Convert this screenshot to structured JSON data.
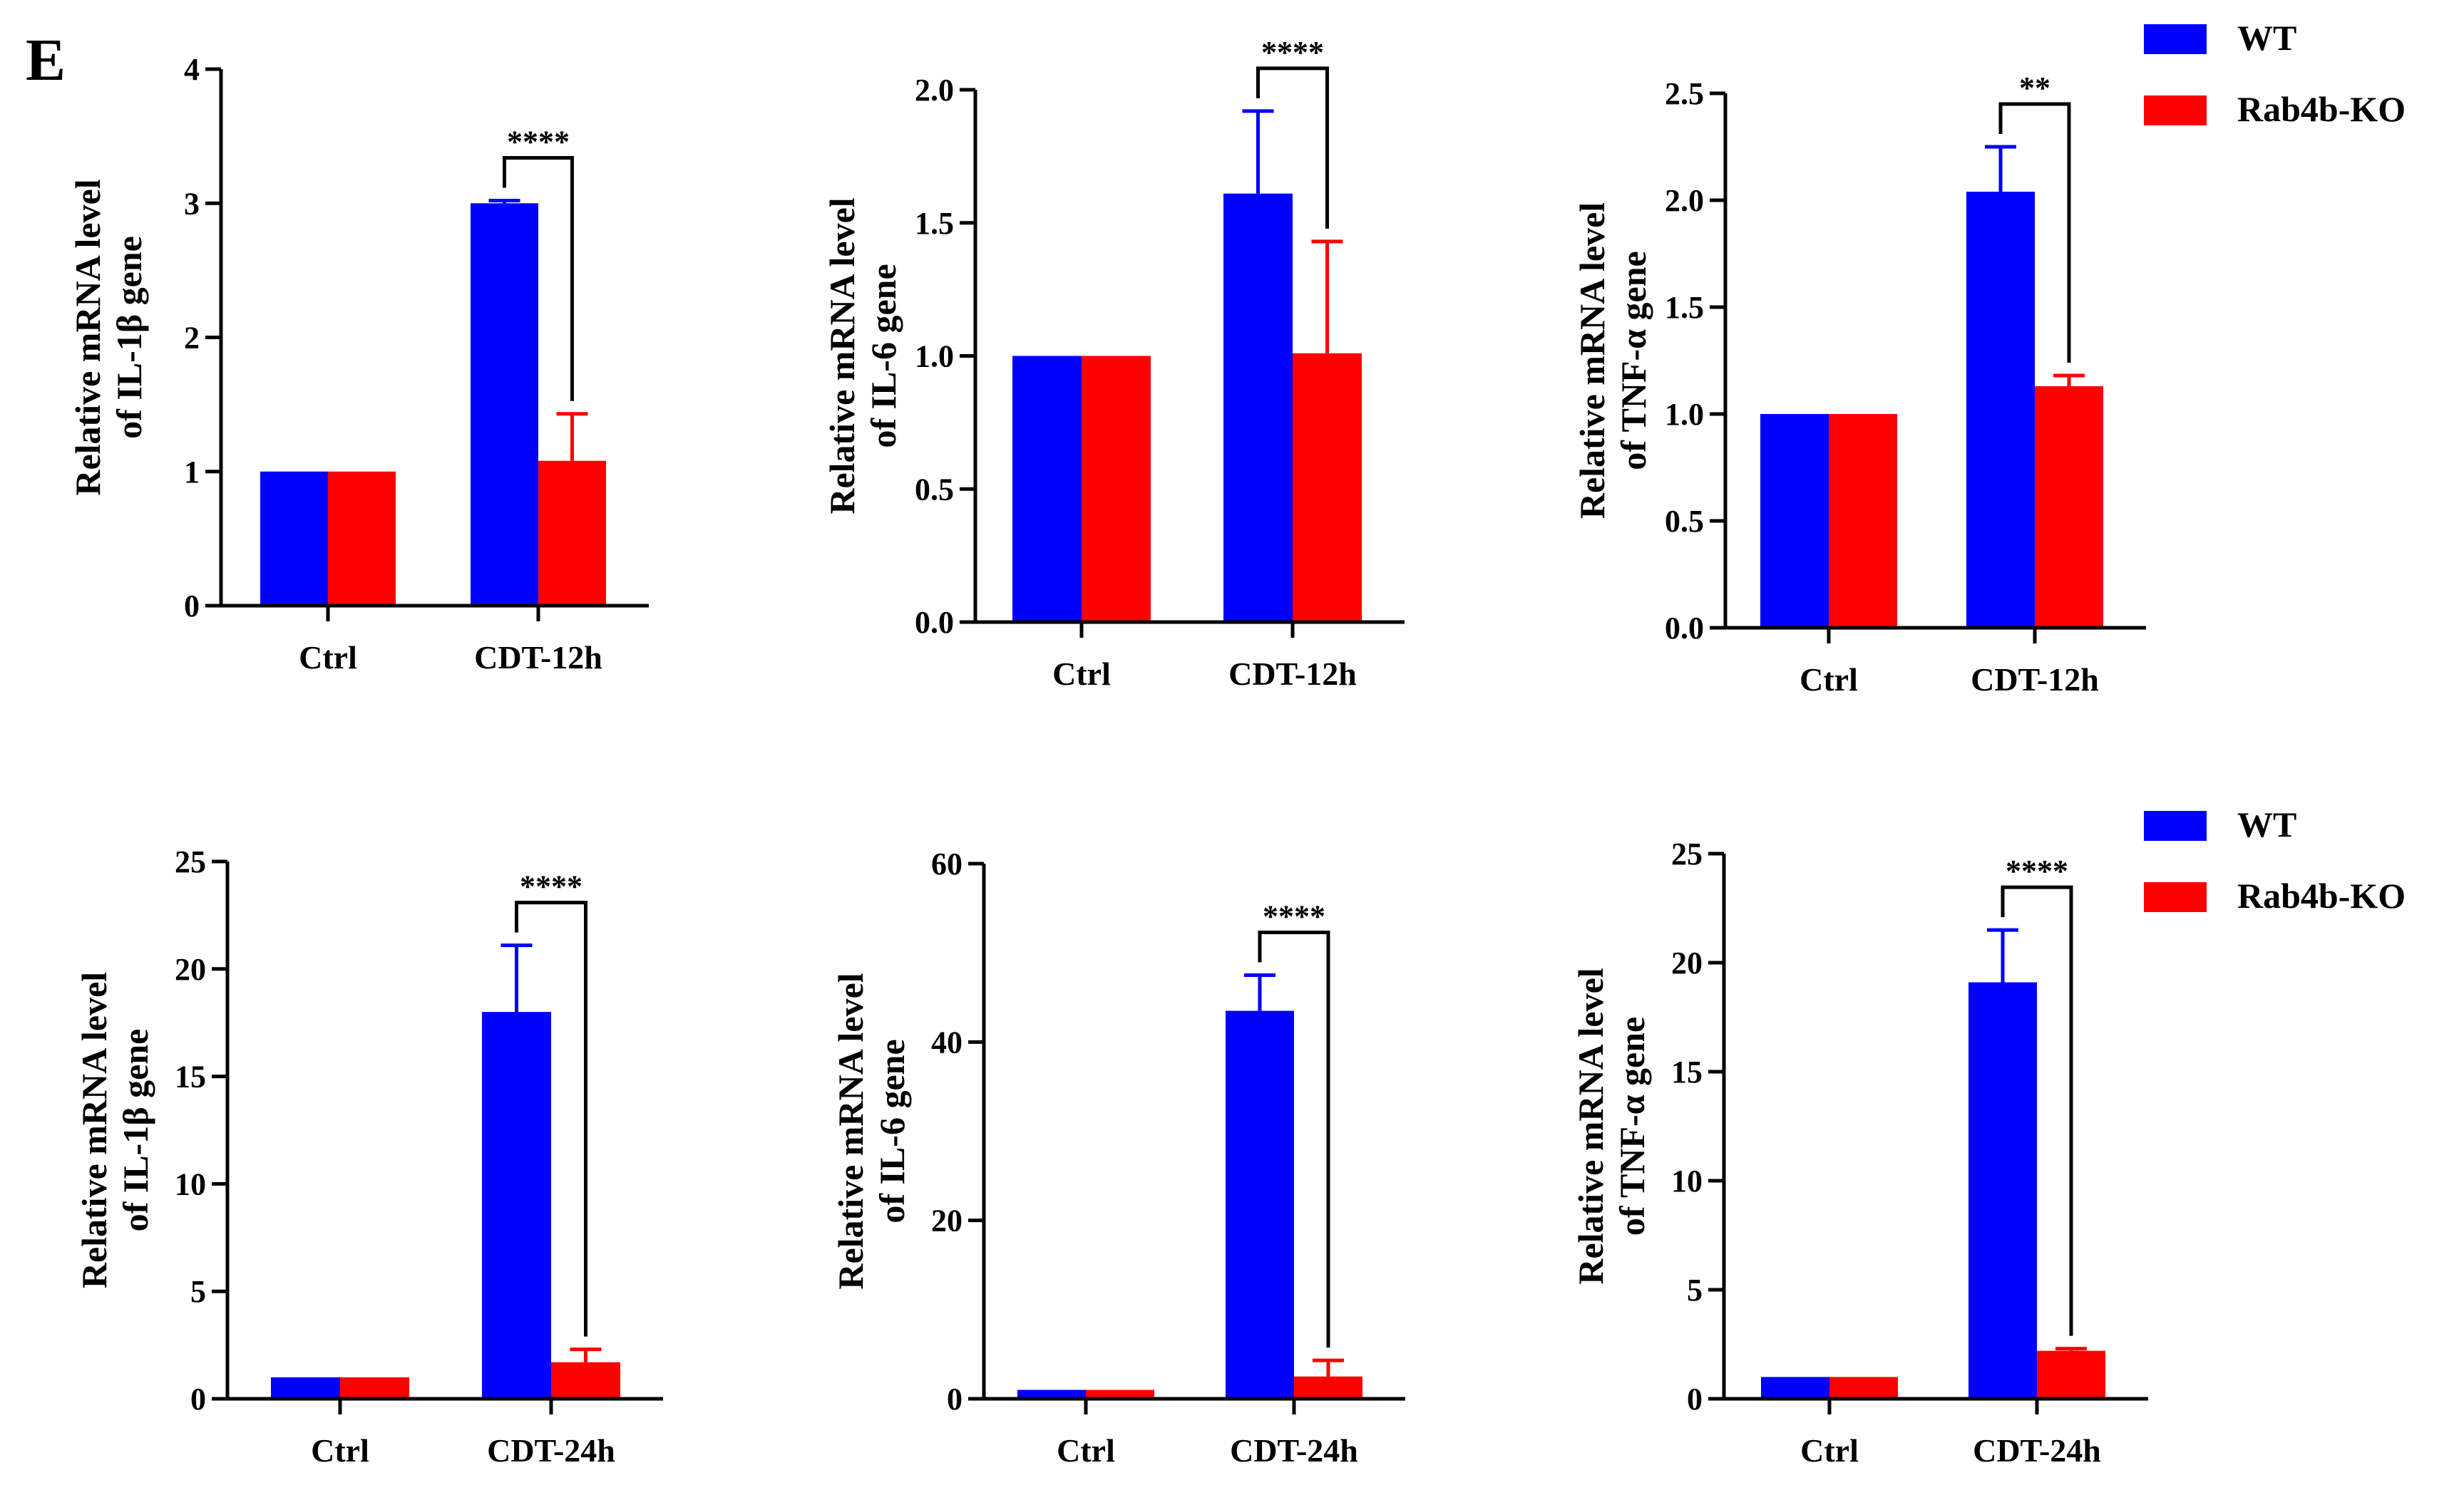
{
  "panel_label": "E",
  "legend": {
    "wt_label": "WT",
    "ko_label": "Rab4b-KO"
  },
  "colors": {
    "wt": "#0000FF",
    "ko": "#FF0000",
    "axis": "#000000"
  },
  "chart_data": [
    {
      "type": "bar",
      "id": "il1b-12h",
      "ylabel": [
        "Relative mRNA level",
        "of IL-1β gene"
      ],
      "categories": [
        "Ctrl",
        "CDT-12h"
      ],
      "series": [
        {
          "name": "WT",
          "values": [
            1.0,
            3.0
          ],
          "errors": [
            0,
            0.02
          ]
        },
        {
          "name": "Rab4b-KO",
          "values": [
            1.0,
            1.08
          ],
          "errors": [
            0,
            0.35
          ]
        }
      ],
      "ylim": [
        0,
        4
      ],
      "yticks": [
        "0",
        "1",
        "2",
        "3",
        "4"
      ],
      "significance": {
        "category": "CDT-12h",
        "label": "****"
      }
    },
    {
      "type": "bar",
      "id": "il6-12h",
      "ylabel": [
        "Relative mRNA level",
        "of IL-6 gene"
      ],
      "categories": [
        "Ctrl",
        "CDT-12h"
      ],
      "series": [
        {
          "name": "WT",
          "values": [
            1.0,
            1.61
          ],
          "errors": [
            0,
            0.31
          ]
        },
        {
          "name": "Rab4b-KO",
          "values": [
            1.0,
            1.01
          ],
          "errors": [
            0,
            0.42
          ]
        }
      ],
      "ylim": [
        0,
        2.0
      ],
      "yticks": [
        "0.0",
        "0.5",
        "1.0",
        "1.5",
        "2.0"
      ],
      "significance": {
        "category": "CDT-12h",
        "label": "****"
      }
    },
    {
      "type": "bar",
      "id": "tnfa-12h",
      "ylabel": [
        "Relative mRNA level",
        "of TNF-α gene"
      ],
      "categories": [
        "Ctrl",
        "CDT-12h"
      ],
      "series": [
        {
          "name": "WT",
          "values": [
            1.0,
            2.04
          ],
          "errors": [
            0,
            0.21
          ]
        },
        {
          "name": "Rab4b-KO",
          "values": [
            1.0,
            1.13
          ],
          "errors": [
            0,
            0.05
          ]
        }
      ],
      "ylim": [
        0,
        2.5
      ],
      "yticks": [
        "0.0",
        "0.5",
        "1.0",
        "1.5",
        "2.0",
        "2.5"
      ],
      "significance": {
        "category": "CDT-12h",
        "label": "**"
      }
    },
    {
      "type": "bar",
      "id": "il1b-24h",
      "ylabel": [
        "Relative mRNA level",
        "of IL-1β gene"
      ],
      "categories": [
        "Ctrl",
        "CDT-24h"
      ],
      "series": [
        {
          "name": "WT",
          "values": [
            1.0,
            18.0
          ],
          "errors": [
            0,
            3.1
          ]
        },
        {
          "name": "Rab4b-KO",
          "values": [
            1.0,
            1.7
          ],
          "errors": [
            0,
            0.6
          ]
        }
      ],
      "ylim": [
        0,
        25
      ],
      "yticks": [
        "0",
        "5",
        "10",
        "15",
        "20",
        "25"
      ],
      "significance": {
        "category": "CDT-24h",
        "label": "****"
      }
    },
    {
      "type": "bar",
      "id": "il6-24h",
      "ylabel": [
        "Relative mRNA level",
        "of IL-6 gene"
      ],
      "categories": [
        "Ctrl",
        "CDT-24h"
      ],
      "series": [
        {
          "name": "WT",
          "values": [
            1.0,
            43.5
          ],
          "errors": [
            0,
            4.0
          ]
        },
        {
          "name": "Rab4b-KO",
          "values": [
            1.0,
            2.5
          ],
          "errors": [
            0,
            1.8
          ]
        }
      ],
      "ylim": [
        0,
        60
      ],
      "yticks": [
        "0",
        "20",
        "40",
        "60"
      ],
      "significance": {
        "category": "CDT-24h",
        "label": "****"
      }
    },
    {
      "type": "bar",
      "id": "tnfa-24h",
      "ylabel": [
        "Relative mRNA level",
        "of TNF-α gene"
      ],
      "categories": [
        "Ctrl",
        "CDT-24h"
      ],
      "series": [
        {
          "name": "WT",
          "values": [
            1.0,
            19.1
          ],
          "errors": [
            0,
            2.4
          ]
        },
        {
          "name": "Rab4b-KO",
          "values": [
            1.0,
            2.2
          ],
          "errors": [
            0,
            0.1
          ]
        }
      ],
      "ylim": [
        0,
        25
      ],
      "yticks": [
        "0",
        "5",
        "10",
        "15",
        "20",
        "25"
      ],
      "significance": {
        "category": "CDT-24h",
        "label": "****"
      }
    }
  ]
}
